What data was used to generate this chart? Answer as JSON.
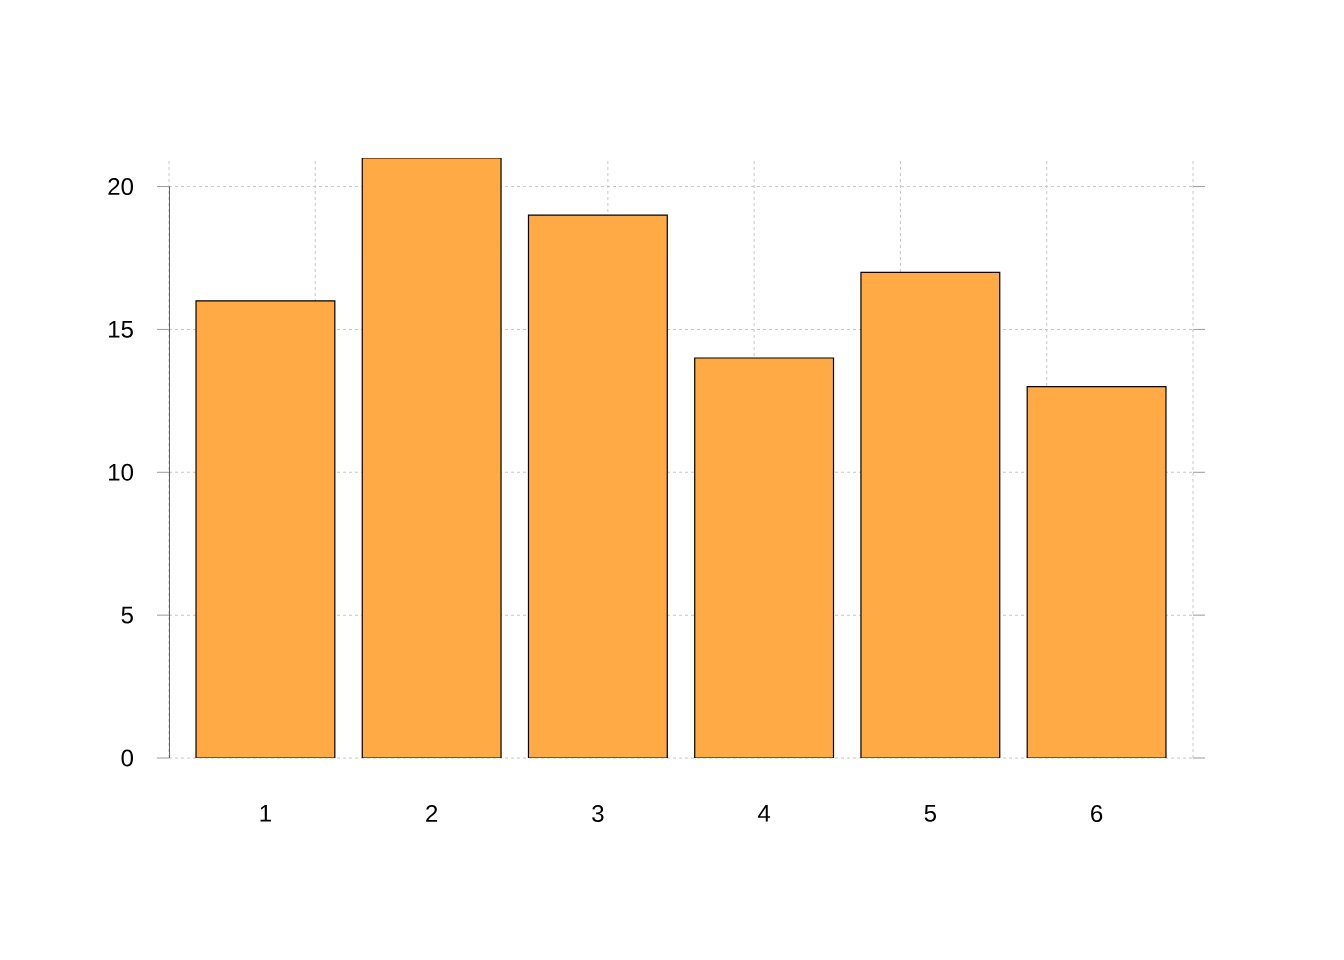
{
  "chart_data": {
    "type": "bar",
    "categories": [
      "1",
      "2",
      "3",
      "4",
      "5",
      "6"
    ],
    "values": [
      16,
      21,
      19,
      14,
      17,
      13
    ],
    "color": "#ffaa44",
    "ylim": [
      0,
      21
    ],
    "yticks": [
      0,
      5,
      10,
      15,
      20
    ],
    "grid": true
  }
}
